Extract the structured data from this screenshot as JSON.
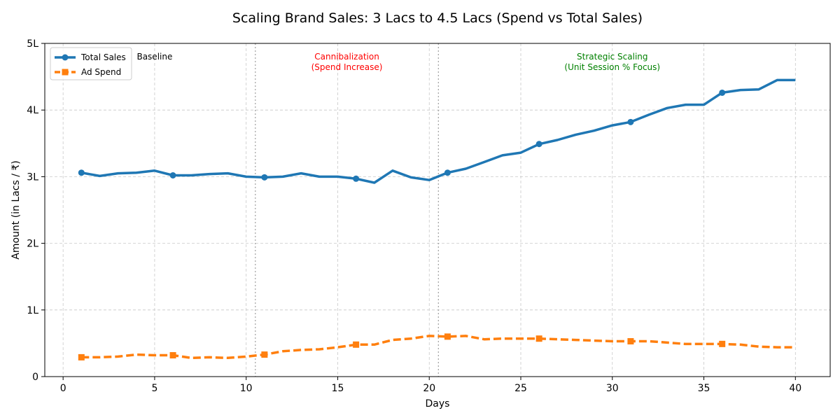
{
  "chart_data": {
    "type": "line",
    "title": "Scaling Brand Sales: 3 Lacs to 4.5 Lacs (Spend vs Total Sales)",
    "xlabel": "Days",
    "ylabel": "Amount (in Lacs / ₹)",
    "xlim": [
      -1,
      41.9
    ],
    "ylim": [
      0,
      5
    ],
    "xticks": [
      0,
      5,
      10,
      15,
      20,
      25,
      30,
      35,
      40
    ],
    "xtick_labels": [
      "0",
      "5",
      "10",
      "15",
      "20",
      "25",
      "30",
      "35",
      "40"
    ],
    "yticks": [
      0,
      1,
      2,
      3,
      4,
      5
    ],
    "ytick_labels": [
      "0",
      "1L",
      "2L",
      "3L",
      "4L",
      "5L"
    ],
    "grid": true,
    "legend_position": "top-left",
    "x": [
      1,
      2,
      3,
      4,
      5,
      6,
      7,
      8,
      9,
      10,
      11,
      12,
      13,
      14,
      15,
      16,
      17,
      18,
      19,
      20,
      21,
      22,
      23,
      24,
      25,
      26,
      27,
      28,
      29,
      30,
      31,
      32,
      33,
      34,
      35,
      36,
      37,
      38,
      39,
      40
    ],
    "series": [
      {
        "name": "Total Sales",
        "color": "#1f77b4",
        "style": "solid",
        "marker": "circle",
        "values": [
          3.06,
          3.01,
          3.05,
          3.06,
          3.09,
          3.02,
          3.02,
          3.04,
          3.05,
          3.0,
          2.99,
          3.0,
          3.05,
          3.0,
          3.0,
          2.97,
          2.91,
          3.09,
          2.99,
          2.95,
          3.06,
          3.12,
          3.22,
          3.32,
          3.36,
          3.49,
          3.55,
          3.63,
          3.69,
          3.77,
          3.82,
          3.93,
          4.03,
          4.08,
          4.08,
          4.26,
          4.3,
          4.31,
          4.45,
          4.45
        ]
      },
      {
        "name": "Ad Spend",
        "color": "#ff7f0e",
        "style": "dashed",
        "marker": "square",
        "values": [
          0.29,
          0.29,
          0.3,
          0.33,
          0.32,
          0.32,
          0.28,
          0.29,
          0.28,
          0.3,
          0.33,
          0.38,
          0.4,
          0.41,
          0.44,
          0.48,
          0.48,
          0.55,
          0.57,
          0.61,
          0.6,
          0.61,
          0.56,
          0.57,
          0.57,
          0.57,
          0.56,
          0.55,
          0.54,
          0.53,
          0.53,
          0.53,
          0.51,
          0.49,
          0.49,
          0.49,
          0.48,
          0.45,
          0.44,
          0.44
        ]
      }
    ],
    "marker_every": 5,
    "phase_dividers": [
      10.5,
      20.5
    ],
    "annotations": [
      {
        "lines": [
          "Baseline"
        ],
        "x": 5,
        "y": 4.8,
        "color": "#000000",
        "anchor": "middle"
      },
      {
        "lines": [
          "Cannibalization",
          "(Spend Increase)"
        ],
        "x": 15.5,
        "y": 4.8,
        "color": "#ff0000",
        "anchor": "middle"
      },
      {
        "lines": [
          "Strategic Scaling",
          "(Unit Session % Focus)"
        ],
        "x": 30,
        "y": 4.8,
        "color": "#008000",
        "anchor": "middle"
      }
    ]
  }
}
